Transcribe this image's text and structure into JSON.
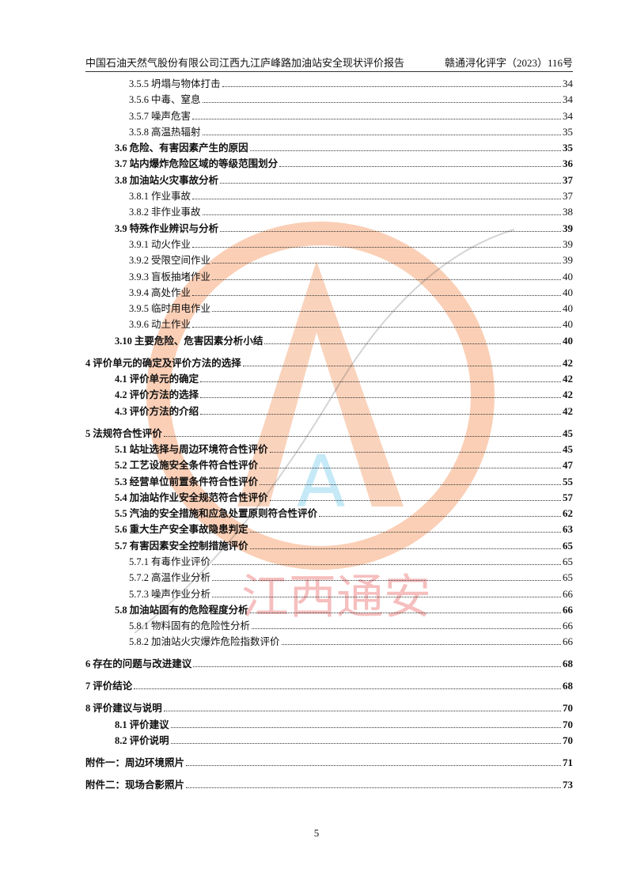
{
  "header": {
    "title": "中国石油天然气股份有限公司江西九江庐峰路加油站安全现状评价报告",
    "doc_no": "赣通浔化评字（2023）116号"
  },
  "toc": [
    {
      "level": 2,
      "num": "3.5.5",
      "text": "坍塌与物体打击",
      "page": "34"
    },
    {
      "level": 2,
      "num": "3.5.6",
      "text": "中毒、窒息",
      "page": "34"
    },
    {
      "level": 2,
      "num": "3.5.7",
      "text": "噪声危害",
      "page": "34"
    },
    {
      "level": 2,
      "num": "3.5.8",
      "text": "高温热辐射",
      "page": "35"
    },
    {
      "level": 1,
      "num": "3.6",
      "text": "危险、有害因素产生的原因",
      "page": "35"
    },
    {
      "level": 1,
      "num": "3.7",
      "text": "站内爆炸危险区域的等级范围划分",
      "page": "36"
    },
    {
      "level": 1,
      "num": "3.8",
      "text": "加油站火灾事故分析",
      "page": "37"
    },
    {
      "level": 2,
      "num": "3.8.1",
      "text": "作业事故",
      "page": "37"
    },
    {
      "level": 2,
      "num": "3.8.2",
      "text": "非作业事故",
      "page": "38"
    },
    {
      "level": 1,
      "num": "3.9",
      "text": "特殊作业辨识与分析",
      "page": "39"
    },
    {
      "level": 2,
      "num": "3.9.1",
      "text": "动火作业",
      "page": "39"
    },
    {
      "level": 2,
      "num": "3.9.2",
      "text": "受限空间作业",
      "page": "39"
    },
    {
      "level": 2,
      "num": "3.9.3",
      "text": "盲板抽堵作业",
      "page": "40"
    },
    {
      "level": 2,
      "num": "3.9.4",
      "text": "高处作业",
      "page": "40"
    },
    {
      "level": 2,
      "num": "3.9.5",
      "text": "临时用电作业",
      "page": "40"
    },
    {
      "level": 2,
      "num": "3.9.6",
      "text": "动土作业",
      "page": "40"
    },
    {
      "level": 1,
      "num": "3.10",
      "text": "主要危险、危害因素分析小结",
      "page": "40"
    },
    {
      "level": 0,
      "num": "4",
      "text": "评价单元的确定及评价方法的选择",
      "page": "42"
    },
    {
      "level": 1,
      "num": "4.1",
      "text": "评价单元的确定",
      "page": "42"
    },
    {
      "level": 1,
      "num": "4.2",
      "text": "评价方法的选择",
      "page": "42"
    },
    {
      "level": 1,
      "num": "4.3",
      "text": "评价方法的介绍",
      "page": "42"
    },
    {
      "level": 0,
      "num": "5",
      "text": "法规符合性评价",
      "page": "45"
    },
    {
      "level": 1,
      "num": "5.1",
      "text": "站址选择与周边环境符合性评价",
      "page": "45"
    },
    {
      "level": 1,
      "num": "5.2",
      "text": "工艺设施安全条件符合性评价",
      "page": "47"
    },
    {
      "level": 1,
      "num": "5.3",
      "text": "经营单位前置条件符合性评价",
      "page": "55"
    },
    {
      "level": 1,
      "num": "5.4",
      "text": "加油站作业安全规范符合性评价",
      "page": "57"
    },
    {
      "level": 1,
      "num": "5.5",
      "text": "汽油的安全措施和应急处置原则符合性评价",
      "page": "62"
    },
    {
      "level": 1,
      "num": "5.6",
      "text": "重大生产安全事故隐患判定",
      "page": "63"
    },
    {
      "level": 1,
      "num": "5.7",
      "text": "有害因素安全控制措施评价",
      "page": "65"
    },
    {
      "level": 2,
      "num": "5.7.1",
      "text": "有毒作业评价",
      "page": "65"
    },
    {
      "level": 2,
      "num": "5.7.2",
      "text": "高温作业分析",
      "page": "65"
    },
    {
      "level": 2,
      "num": "5.7.3",
      "text": "噪声作业分析",
      "page": "66"
    },
    {
      "level": 1,
      "num": "5.8",
      "text": "加油站固有的危险程度分析",
      "page": "66"
    },
    {
      "level": 2,
      "num": "5.8.1",
      "text": "物料固有的危险性分析",
      "page": "66"
    },
    {
      "level": 2,
      "num": "5.8.2",
      "text": "加油站火灾爆炸危险指数评价",
      "page": "66"
    },
    {
      "level": 0,
      "num": "6",
      "text": "存在的问题与改进建议",
      "page": "68"
    },
    {
      "level": 0,
      "num": "7",
      "text": "评价结论",
      "page": "68"
    },
    {
      "level": 0,
      "num": "8",
      "text": "评价建议与说明",
      "page": "70"
    },
    {
      "level": 1,
      "num": "8.1",
      "text": "评价建议",
      "page": "70"
    },
    {
      "level": 1,
      "num": "8.2",
      "text": "评价说明",
      "page": "70"
    },
    {
      "level": 0,
      "num": "",
      "text": "附件一：周边环境照片",
      "page": "71"
    },
    {
      "level": 0,
      "num": "",
      "text": "附件二：现场合影照片",
      "page": "73"
    }
  ],
  "page_number": "5",
  "watermark": {
    "text": "江西通安",
    "colors": {
      "ring": "#f6a77a",
      "text": "#f08a8a",
      "accent": "#7fd0ec"
    }
  }
}
